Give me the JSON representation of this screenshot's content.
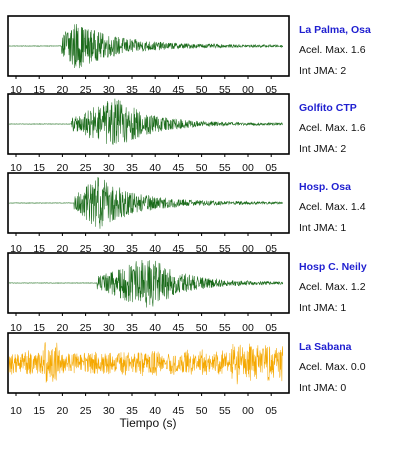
{
  "chart_data": {
    "type": "line",
    "xlabel": "Tiempo (s)",
    "xlim": [
      8.5,
      67.5
    ],
    "x_tick_labels": [
      "10",
      "15",
      "20",
      "25",
      "30",
      "35",
      "40",
      "45",
      "50",
      "55",
      "00",
      "05"
    ],
    "acel_label": "Acel. Max.",
    "int_label": "Int JMA:",
    "panels": [
      {
        "station": "La Palma, Osa",
        "acel_max": "1.6",
        "int_jma": "2",
        "color": "#1a6b1a",
        "onset": 19.8,
        "peak_time": 21.5,
        "amplitude": 1.0,
        "decay": 9,
        "pre_noise": 0.008
      },
      {
        "station": "Golfito CTP",
        "acel_max": "1.6",
        "int_jma": "2",
        "color": "#1a6b1a",
        "onset": 22.0,
        "peak_time": 31.5,
        "amplitude": 1.0,
        "decay": 7,
        "pre_noise": 0.008
      },
      {
        "station": "Hosp. Osa",
        "acel_max": "1.4",
        "int_jma": "1",
        "color": "#1a6b1a",
        "onset": 22.5,
        "peak_time": 27.5,
        "amplitude": 1.0,
        "decay": 8,
        "pre_noise": 0.008
      },
      {
        "station": "Hosp C. Neily",
        "acel_max": "1.2",
        "int_jma": "1",
        "color": "#1a6b1a",
        "onset": 27.5,
        "peak_time": 38.5,
        "amplitude": 1.0,
        "decay": 7,
        "pre_noise": 0.008
      },
      {
        "station": "La Sabana",
        "acel_max": "0.0",
        "int_jma": "0",
        "color": "#f5a800",
        "onset": 8.5,
        "peak_time": 38.5,
        "amplitude": 0.5,
        "decay": 0,
        "pre_noise": 0.4
      }
    ]
  }
}
